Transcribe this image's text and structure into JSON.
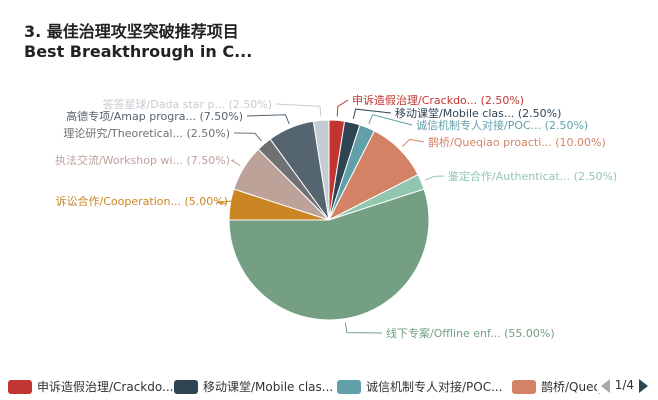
{
  "header": {
    "title_cn": "3. 最佳治理攻坚突破推荐项目",
    "title_en": "Best Breakthrough in C..."
  },
  "chart_data": {
    "type": "pie",
    "slices": [
      {
        "label": "申诉造假治理/Crackdo... (2.50%)",
        "value": 2.5,
        "color": "#c23531"
      },
      {
        "label": "移动课堂/Mobile clas... (2.50%)",
        "value": 2.5,
        "color": "#2f4554"
      },
      {
        "label": "诚信机制专人对接/POC... (2.50%)",
        "value": 2.5,
        "color": "#61a0a8"
      },
      {
        "label": "鹊桥/Queqiao proacti... (10.00%)",
        "value": 10.0,
        "color": "#d48265"
      },
      {
        "label": "鉴定合作/Authenticat... (2.50%)",
        "value": 2.5,
        "color": "#91c7ae"
      },
      {
        "label": "线下专案/Offline enf... (55.00%)",
        "value": 55.0,
        "color": "#749f83"
      },
      {
        "label": "诉讼合作/Cooperation... (5.00%)",
        "value": 5.0,
        "color": "#ca8622"
      },
      {
        "label": "执法交流/Workshop wi... (7.50%)",
        "value": 7.5,
        "color": "#bda29a"
      },
      {
        "label": "理论研究/Theoretical... (2.50%)",
        "value": 2.5,
        "color": "#6e7074"
      },
      {
        "label": "高德专项/Amap progra... (7.50%)",
        "value": 7.5,
        "color": "#546570"
      },
      {
        "label": "答答星球/Dada star p... (2.50%)",
        "value": 2.5,
        "color": "#c4ccd3"
      }
    ]
  },
  "legend": {
    "items": [
      {
        "label": "申诉造假治理/Crackdo...",
        "color": "#c23531"
      },
      {
        "label": "移动课堂/Mobile clas...",
        "color": "#2f4554"
      },
      {
        "label": "诚信机制专人对接/POC...",
        "color": "#61a0a8"
      },
      {
        "label": "鹊桥/Queqiao proacti...",
        "color": "#d48265"
      }
    ],
    "page_text": "1/4"
  }
}
